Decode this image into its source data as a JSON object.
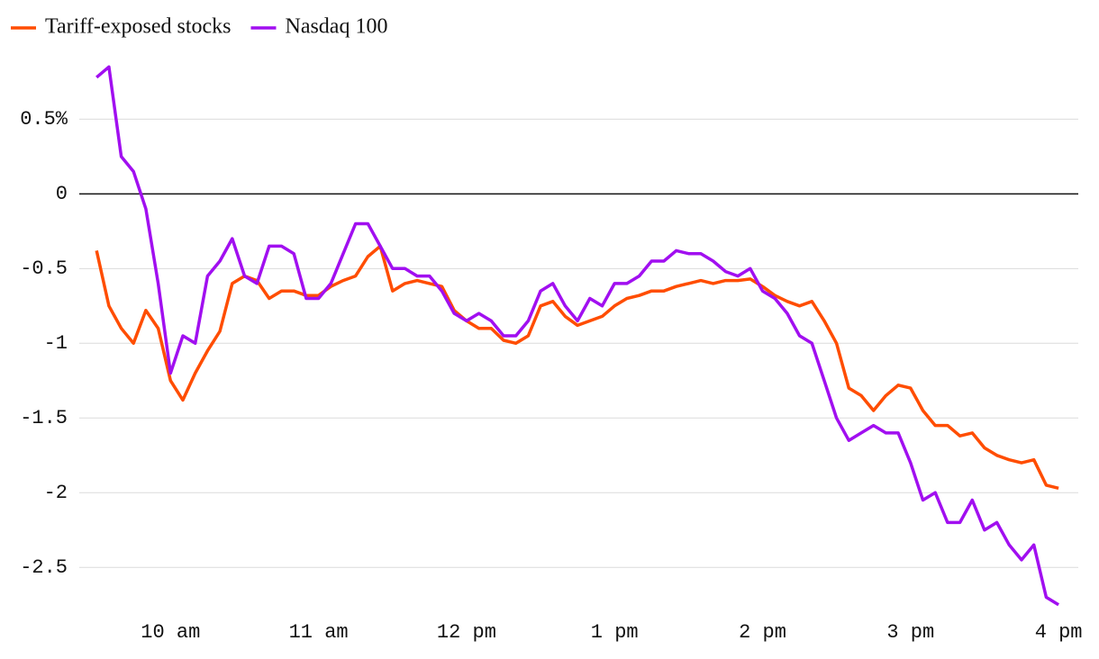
{
  "chart_data": {
    "type": "line",
    "x": [
      570,
      575,
      580,
      585,
      590,
      595,
      600,
      605,
      610,
      615,
      620,
      625,
      630,
      635,
      640,
      645,
      650,
      655,
      660,
      665,
      670,
      675,
      680,
      685,
      690,
      695,
      700,
      705,
      710,
      715,
      720,
      725,
      730,
      735,
      740,
      745,
      750,
      755,
      760,
      765,
      770,
      775,
      780,
      785,
      790,
      795,
      800,
      805,
      810,
      815,
      820,
      825,
      830,
      835,
      840,
      845,
      850,
      855,
      860,
      865,
      870,
      875,
      880,
      885,
      890,
      895,
      900,
      905,
      910,
      915,
      920,
      925,
      930,
      935,
      940,
      945,
      950,
      955,
      960
    ],
    "series": [
      {
        "name": "Tariff-exposed stocks",
        "color": "#ff4d00",
        "values": [
          -0.38,
          -0.75,
          -0.9,
          -1.0,
          -0.78,
          -0.9,
          -1.25,
          -1.38,
          -1.2,
          -1.05,
          -0.92,
          -0.6,
          -0.55,
          -0.58,
          -0.7,
          -0.65,
          -0.65,
          -0.68,
          -0.68,
          -0.62,
          -0.58,
          -0.55,
          -0.42,
          -0.35,
          -0.65,
          -0.6,
          -0.58,
          -0.6,
          -0.62,
          -0.78,
          -0.85,
          -0.9,
          -0.9,
          -0.98,
          -1.0,
          -0.95,
          -0.75,
          -0.72,
          -0.82,
          -0.88,
          -0.85,
          -0.82,
          -0.75,
          -0.7,
          -0.68,
          -0.65,
          -0.65,
          -0.62,
          -0.6,
          -0.58,
          -0.6,
          -0.58,
          -0.58,
          -0.57,
          -0.62,
          -0.68,
          -0.72,
          -0.75,
          -0.72,
          -0.85,
          -1.0,
          -1.3,
          -1.35,
          -1.45,
          -1.35,
          -1.28,
          -1.3,
          -1.45,
          -1.55,
          -1.55,
          -1.62,
          -1.6,
          -1.7,
          -1.75,
          -1.78,
          -1.8,
          -1.78,
          -1.95,
          -1.97
        ]
      },
      {
        "name": "Nasdaq 100",
        "color": "#a10ff0",
        "values": [
          0.78,
          0.85,
          0.25,
          0.15,
          -0.1,
          -0.6,
          -1.2,
          -0.95,
          -1.0,
          -0.55,
          -0.45,
          -0.3,
          -0.55,
          -0.6,
          -0.35,
          -0.35,
          -0.4,
          -0.7,
          -0.7,
          -0.6,
          -0.4,
          -0.2,
          -0.2,
          -0.35,
          -0.5,
          -0.5,
          -0.55,
          -0.55,
          -0.65,
          -0.8,
          -0.85,
          -0.8,
          -0.85,
          -0.95,
          -0.95,
          -0.85,
          -0.65,
          -0.6,
          -0.75,
          -0.85,
          -0.7,
          -0.75,
          -0.6,
          -0.6,
          -0.55,
          -0.45,
          -0.45,
          -0.38,
          -0.4,
          -0.4,
          -0.45,
          -0.52,
          -0.55,
          -0.5,
          -0.65,
          -0.7,
          -0.8,
          -0.95,
          -1.0,
          -1.25,
          -1.5,
          -1.65,
          -1.6,
          -1.55,
          -1.6,
          -1.6,
          -1.8,
          -2.05,
          -2.0,
          -2.2,
          -2.2,
          -2.05,
          -2.25,
          -2.2,
          -2.35,
          -2.45,
          -2.35,
          -2.7,
          -2.75
        ]
      }
    ],
    "xlim": [
      563,
      968
    ],
    "xticks": [
      {
        "value": 600,
        "label": "10 am"
      },
      {
        "value": 660,
        "label": "11 am"
      },
      {
        "value": 720,
        "label": "12 pm"
      },
      {
        "value": 780,
        "label": "1 pm"
      },
      {
        "value": 840,
        "label": "2 pm"
      },
      {
        "value": 900,
        "label": "3 pm"
      },
      {
        "value": 960,
        "label": "4 pm"
      }
    ],
    "ylim": [
      -2.8,
      0.9
    ],
    "yticks": [
      {
        "value": 0.5,
        "label": "0.5%"
      },
      0,
      -0.5,
      -1,
      -1.5,
      -2,
      -2.5
    ],
    "grid": true,
    "legend": "top-left"
  }
}
